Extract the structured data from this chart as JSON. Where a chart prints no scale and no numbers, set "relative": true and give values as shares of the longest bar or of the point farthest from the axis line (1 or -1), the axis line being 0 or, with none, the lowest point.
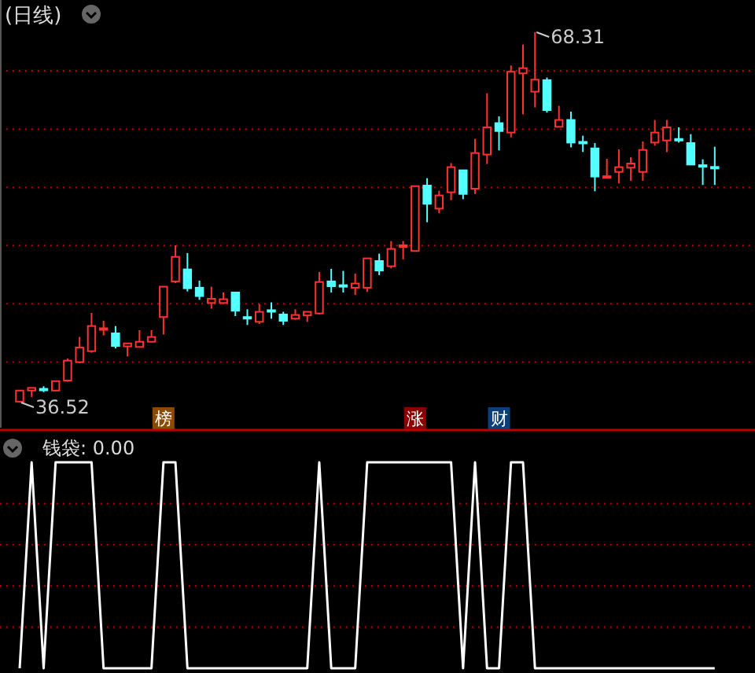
{
  "chart_data": [
    {
      "type": "candlestick",
      "title": "(日线)",
      "categories": [
        null,
        null,
        null,
        null,
        null,
        null,
        null,
        null,
        null,
        null,
        null,
        null,
        null,
        null,
        null,
        null,
        null,
        null,
        null,
        null,
        null,
        null,
        null,
        null,
        null,
        null,
        null,
        null,
        null,
        null,
        null,
        null,
        null,
        null,
        null,
        null,
        null,
        null,
        null,
        null,
        null,
        null,
        null,
        null,
        null,
        null,
        null,
        null,
        null,
        null,
        null,
        null,
        null,
        null,
        null,
        null,
        null,
        null,
        null
      ],
      "ohlc": [
        [
          36.6,
          37.6,
          36.52,
          37.55
        ],
        [
          37.55,
          37.8,
          37.0,
          37.78
        ],
        [
          37.7,
          37.92,
          37.42,
          37.65
        ],
        [
          37.55,
          38.4,
          37.5,
          38.36
        ],
        [
          38.41,
          40.3,
          38.3,
          40.12
        ],
        [
          39.99,
          42.15,
          39.9,
          41.25
        ],
        [
          40.93,
          44.22,
          40.8,
          43.09
        ],
        [
          42.8,
          43.54,
          42.28,
          42.9
        ],
        [
          42.46,
          43.09,
          41.16,
          41.38
        ],
        [
          41.34,
          41.65,
          40.48,
          41.6
        ],
        [
          41.29,
          42.73,
          41.25,
          41.74
        ],
        [
          41.74,
          42.73,
          41.7,
          42.15
        ],
        [
          43.86,
          46.5,
          42.37,
          46.47
        ],
        [
          46.92,
          50.02,
          46.78,
          49.03
        ],
        [
          47.95,
          49.35,
          46.06,
          46.33
        ],
        [
          46.38,
          46.99,
          45.34,
          45.66
        ],
        [
          45.07,
          46.47,
          44.58,
          45.43
        ],
        [
          45.07,
          45.97,
          44.98,
          45.39
        ],
        [
          45.97,
          46.0,
          43.95,
          44.4
        ],
        [
          43.86,
          44.53,
          43.18,
          43.8
        ],
        [
          43.45,
          44.98,
          43.27,
          44.31
        ],
        [
          44.45,
          45.12,
          43.72,
          44.35
        ],
        [
          44.08,
          44.31,
          43.18,
          43.54
        ],
        [
          43.72,
          44.53,
          43.63,
          44.04
        ],
        [
          44.0,
          44.35,
          43.45,
          44.31
        ],
        [
          44.17,
          47.73,
          44.08,
          46.87
        ],
        [
          46.92,
          48.0,
          45.97,
          46.51
        ],
        [
          46.6,
          47.82,
          45.97,
          46.55
        ],
        [
          46.38,
          47.59,
          45.75,
          46.74
        ],
        [
          46.38,
          48.95,
          46.02,
          48.9
        ],
        [
          48.67,
          49.3,
          47.46,
          47.86
        ],
        [
          48.22,
          50.38,
          48.04,
          49.71
        ],
        [
          49.95,
          50.38,
          48.81,
          50.02
        ],
        [
          49.53,
          55.1,
          49.5,
          55.1
        ],
        [
          55.15,
          55.78,
          52.0,
          53.58
        ],
        [
          53.17,
          54.7,
          52.77,
          54.3
        ],
        [
          54.57,
          57.08,
          53.89,
          56.73
        ],
        [
          56.46,
          56.5,
          53.98,
          54.43
        ],
        [
          54.88,
          59.16,
          54.43,
          57.94
        ],
        [
          57.81,
          63.07,
          57.0,
          60.15
        ],
        [
          60.51,
          61.09,
          58.17,
          59.83
        ],
        [
          59.7,
          65.46,
          59.29,
          64.92
        ],
        [
          64.78,
          67.26,
          61.27,
          65.23
        ],
        [
          63.21,
          68.31,
          61.86,
          64.24
        ],
        [
          64.2,
          64.42,
          61.41,
          61.63
        ],
        [
          60.19,
          61.99,
          60.15,
          60.78
        ],
        [
          60.78,
          61.5,
          58.43,
          58.84
        ],
        [
          58.9,
          59.43,
          58.03,
          58.85
        ],
        [
          58.34,
          58.8,
          54.66,
          55.92
        ],
        [
          55.9,
          57.45,
          55.87,
          55.95
        ],
        [
          56.32,
          58.25,
          55.33,
          56.73
        ],
        [
          56.68,
          57.58,
          55.56,
          57.04
        ],
        [
          56.32,
          58.93,
          55.56,
          58.21
        ],
        [
          58.84,
          60.78,
          58.57,
          59.7
        ],
        [
          59.02,
          60.78,
          58.03,
          60.15
        ],
        [
          59.15,
          60.15,
          58.84,
          59.1
        ],
        [
          58.8,
          59.56,
          56.95,
          56.95
        ],
        [
          56.9,
          57.4,
          55.2,
          56.86
        ],
        [
          56.75,
          58.48,
          55.2,
          56.7
        ]
      ],
      "colors": [
        "#ff3232",
        "#ff3232",
        "#54ffff",
        "#ff3232",
        "#ff3232",
        "#ff3232",
        "#ff3232",
        "#ff3232",
        "#54ffff",
        "#ff3232",
        "#ff3232",
        "#ff3232",
        "#ff3232",
        "#ff3232",
        "#54ffff",
        "#54ffff",
        "#ff3232",
        "#ff3232",
        "#54ffff",
        "#54ffff",
        "#ff3232",
        "#54ffff",
        "#54ffff",
        "#ff3232",
        "#ff3232",
        "#ff3232",
        "#54ffff",
        "#54ffff",
        "#ff3232",
        "#ff3232",
        "#54ffff",
        "#ff3232",
        "#ff3232",
        "#ff3232",
        "#54ffff",
        "#ff3232",
        "#ff3232",
        "#54ffff",
        "#ff3232",
        "#ff3232",
        "#54ffff",
        "#ff3232",
        "#ff3232",
        "#ff3232",
        "#54ffff",
        "#ff3232",
        "#54ffff",
        "#54ffff",
        "#54ffff",
        "#ff3232",
        "#ff3232",
        "#ff3232",
        "#ff3232",
        "#ff3232",
        "#ff3232",
        "#54ffff",
        "#54ffff",
        "#54ffff",
        "#54ffff"
      ],
      "ylim": [
        34.36,
        71.08
      ],
      "yticks": [
        {
          "value": 40,
          "label": null
        },
        {
          "value": 45,
          "label": null
        },
        {
          "value": 50,
          "label": null
        },
        {
          "value": 55,
          "label": null
        },
        {
          "value": 60,
          "label": null
        },
        {
          "value": 65,
          "label": null
        }
      ],
      "grid": "y",
      "annotations": [
        "68.31",
        "36.52",
        "榜",
        "涨",
        "财"
      ]
    },
    {
      "type": "line",
      "title": "钱袋: 0.00",
      "categories": [
        null,
        null,
        null,
        null,
        null,
        null,
        null,
        null,
        null,
        null,
        null,
        null,
        null,
        null,
        null,
        null,
        null,
        null,
        null,
        null,
        null,
        null,
        null,
        null,
        null,
        null,
        null,
        null,
        null,
        null,
        null,
        null,
        null,
        null,
        null,
        null,
        null,
        null,
        null,
        null,
        null,
        null,
        null,
        null,
        null,
        null,
        null,
        null,
        null,
        null,
        null,
        null,
        null,
        null,
        null,
        null,
        null,
        null,
        null
      ],
      "relative": true,
      "ref_lines": [
        {
          "axis": "y",
          "value": 0.2,
          "color": "#b00000",
          "line_style": "dotted"
        },
        {
          "axis": "y",
          "value": 0.4,
          "color": "#b00000",
          "line_style": "dotted"
        },
        {
          "axis": "y",
          "value": 0.6,
          "color": "#b00000",
          "line_style": "dotted"
        },
        {
          "axis": "y",
          "value": 0.8,
          "color": "#b00000",
          "line_style": "dotted"
        }
      ],
      "series": [
        {
          "color": "#ffffff",
          "values": [
            0,
            1,
            0,
            1,
            1,
            1,
            1,
            0,
            0,
            0,
            0,
            0,
            1,
            1,
            0,
            0,
            0,
            0,
            0,
            0,
            0,
            0,
            0,
            0,
            0,
            1,
            0,
            0,
            0,
            1,
            1,
            1,
            1,
            1,
            1,
            1,
            1,
            0,
            1,
            0,
            0,
            1,
            1,
            0,
            0,
            0,
            0,
            0,
            0,
            0,
            0,
            0,
            0,
            0,
            0,
            0,
            0,
            0,
            0
          ]
        }
      ]
    }
  ]
}
